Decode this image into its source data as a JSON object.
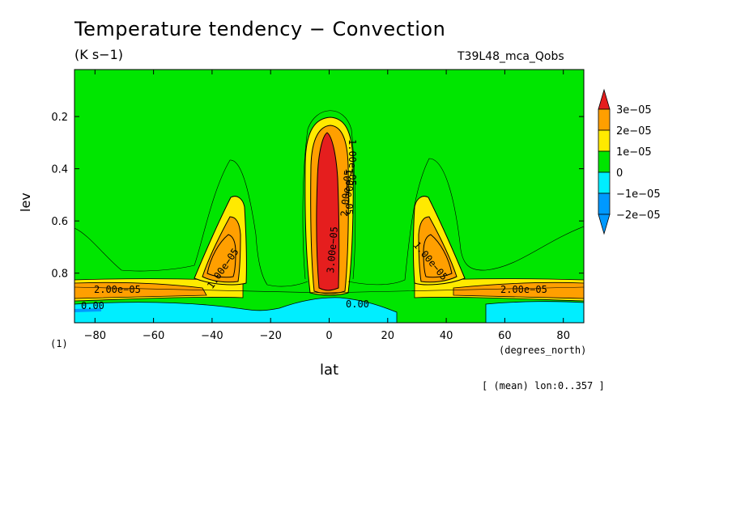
{
  "chart_data": {
    "type": "heatmap",
    "title": "Temperature tendency − Convection",
    "units": "(K s−1)",
    "experiment": "T39L48_mca_Qobs",
    "xlabel": "lat",
    "xunit": "(degrees_north)",
    "ylabel": "lev",
    "ymultiplier": "(1)",
    "note": "[ (mean) lon:0..357 ]",
    "xlim": [
      -87,
      87
    ],
    "ylim": [
      0.02,
      0.99
    ],
    "y_inverted": true,
    "xticks": [
      -80,
      -60,
      -40,
      -20,
      0,
      20,
      40,
      60,
      80
    ],
    "xtick_labels": [
      "−80",
      "−60",
      "−40",
      "−20",
      "0",
      "20",
      "40",
      "60",
      "80"
    ],
    "yticks": [
      0.2,
      0.4,
      0.6,
      0.8
    ],
    "ytick_labels": [
      "0.2",
      "0.4",
      "0.6",
      "0.8"
    ],
    "levels": [
      -2e-05,
      -1e-05,
      0,
      1e-05,
      2e-05,
      3e-05
    ],
    "colorbar": {
      "labels": [
        "3e−05",
        "2e−05",
        "1e−05",
        "0",
        "−1e−05",
        "−2e−05"
      ],
      "colors": [
        "#e51e1e",
        "#ff9f00",
        "#ffea00",
        "#00e600",
        "#00eeff",
        "#0099ff"
      ]
    },
    "regions": [
      {
        "name": "background",
        "level": 0,
        "color": "#00e600"
      },
      {
        "name": "tropical-tower",
        "level": "3e-05",
        "x_range": [
          -3,
          3
        ],
        "y_range": [
          0.26,
          0.86
        ],
        "color": "#e51e1e"
      },
      {
        "name": "sh-midlat-max",
        "level": "2e-05",
        "x_range": [
          -45,
          -30
        ],
        "y_range": [
          0.62,
          0.88
        ],
        "color": "#ff9f00"
      },
      {
        "name": "nh-midlat-max",
        "level": "2e-05",
        "x_range": [
          30,
          45
        ],
        "y_range": [
          0.62,
          0.88
        ],
        "color": "#ff9f00"
      },
      {
        "name": "surface-negative",
        "level": "-1e-05",
        "x_range": [
          -87,
          20
        ],
        "y_range": [
          0.9,
          0.99
        ],
        "color": "#00eeff"
      }
    ],
    "contour_labels": [
      "2.00e−05",
      "1.00e−05",
      "0.00",
      "1.00e−05",
      "2.00e−05",
      "0.00",
      "1.00e−05",
      "1.00e−05",
      "3.00e−05",
      "2.00e−05"
    ]
  }
}
